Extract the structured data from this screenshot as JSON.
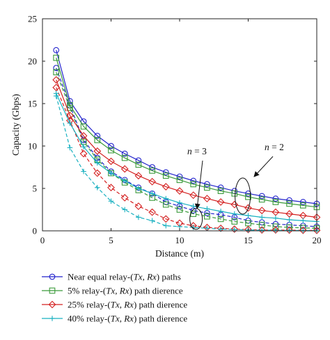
{
  "chart_data": {
    "type": "line",
    "title": "",
    "xlabel": "Distance (m)",
    "ylabel": "Capacity (Gbps)",
    "xlim": [
      0,
      20
    ],
    "ylim": [
      0,
      25
    ],
    "xticks": [
      0,
      5,
      10,
      15,
      20
    ],
    "yticks": [
      0,
      5,
      10,
      15,
      20,
      25
    ],
    "grid": false,
    "legend_position": "below plot",
    "x": [
      1,
      2,
      3,
      4,
      5,
      6,
      7,
      8,
      9,
      10,
      11,
      12,
      13,
      14,
      15,
      16,
      17,
      18,
      19,
      20
    ],
    "series": [
      {
        "name": "Near equal relay-(Tx, Rx) paths",
        "color": "#2222cc",
        "marker": "circle",
        "n2_values": [
          21.3,
          15.3,
          12.9,
          11.2,
          10.0,
          9.1,
          8.3,
          7.5,
          6.9,
          6.4,
          5.9,
          5.5,
          5.1,
          4.7,
          4.4,
          4.1,
          3.8,
          3.6,
          3.4,
          3.2
        ],
        "n3_values": [
          19.2,
          14.8,
          10.7,
          8.6,
          7.0,
          6.0,
          5.1,
          4.4,
          3.4,
          2.9,
          2.4,
          2.1,
          1.9,
          1.6,
          1.2,
          1.0,
          0.8,
          0.7,
          0.6,
          0.5
        ]
      },
      {
        "name": "5% relay-(Tx, Rx) path dierence",
        "color": "#3a9a3a",
        "marker": "square",
        "n2_values": [
          20.4,
          14.8,
          12.3,
          10.7,
          9.5,
          8.6,
          7.8,
          7.1,
          6.5,
          6.0,
          5.5,
          5.1,
          4.7,
          4.4,
          4.0,
          3.7,
          3.4,
          3.2,
          3.0,
          2.8
        ],
        "n3_values": [
          18.7,
          14.5,
          10.5,
          8.4,
          6.8,
          5.7,
          4.8,
          3.9,
          3.1,
          2.5,
          2.0,
          1.7,
          1.4,
          1.1,
          0.9,
          0.7,
          0.5,
          0.4,
          0.35,
          0.3
        ]
      },
      {
        "name": "25% relay-(Tx, Rx) path dierence",
        "color": "#d42020",
        "marker": "diamond",
        "n2_values": [
          17.8,
          13.6,
          11.2,
          9.4,
          8.2,
          7.3,
          6.5,
          5.8,
          5.2,
          4.7,
          4.2,
          3.8,
          3.4,
          3.1,
          2.7,
          2.4,
          2.2,
          2.0,
          1.8,
          1.6
        ],
        "n3_values": [
          16.9,
          13.0,
          9.1,
          6.8,
          5.1,
          3.9,
          2.9,
          2.2,
          1.4,
          0.9,
          0.6,
          0.4,
          0.3,
          0.2,
          0.15,
          0.1,
          0.1,
          0.08,
          0.06,
          0.05
        ]
      },
      {
        "name": "40% relay-(Tx, Rx) path dierence",
        "color": "#18b0c0",
        "marker": "plus",
        "n2_values": [
          16.2,
          12.7,
          9.9,
          8.0,
          6.8,
          5.9,
          5.0,
          4.4,
          3.8,
          3.3,
          2.9,
          2.6,
          2.3,
          2.0,
          1.8,
          1.6,
          1.5,
          1.3,
          1.2,
          1.1
        ],
        "n3_values": [
          15.9,
          9.8,
          7.0,
          5.1,
          3.5,
          2.5,
          1.6,
          1.2,
          0.6,
          0.5,
          0.4,
          0.3,
          0.2,
          0.15,
          0.1,
          0.08,
          0.06,
          0.05,
          0.04,
          0.03
        ]
      }
    ],
    "line_styles": {
      "n2": "solid",
      "n3": "dashed"
    },
    "annotations": [
      {
        "id": "n3",
        "prefix": "n",
        "value": " = 3"
      },
      {
        "id": "n2",
        "prefix": "n",
        "value": " = 2"
      }
    ]
  }
}
